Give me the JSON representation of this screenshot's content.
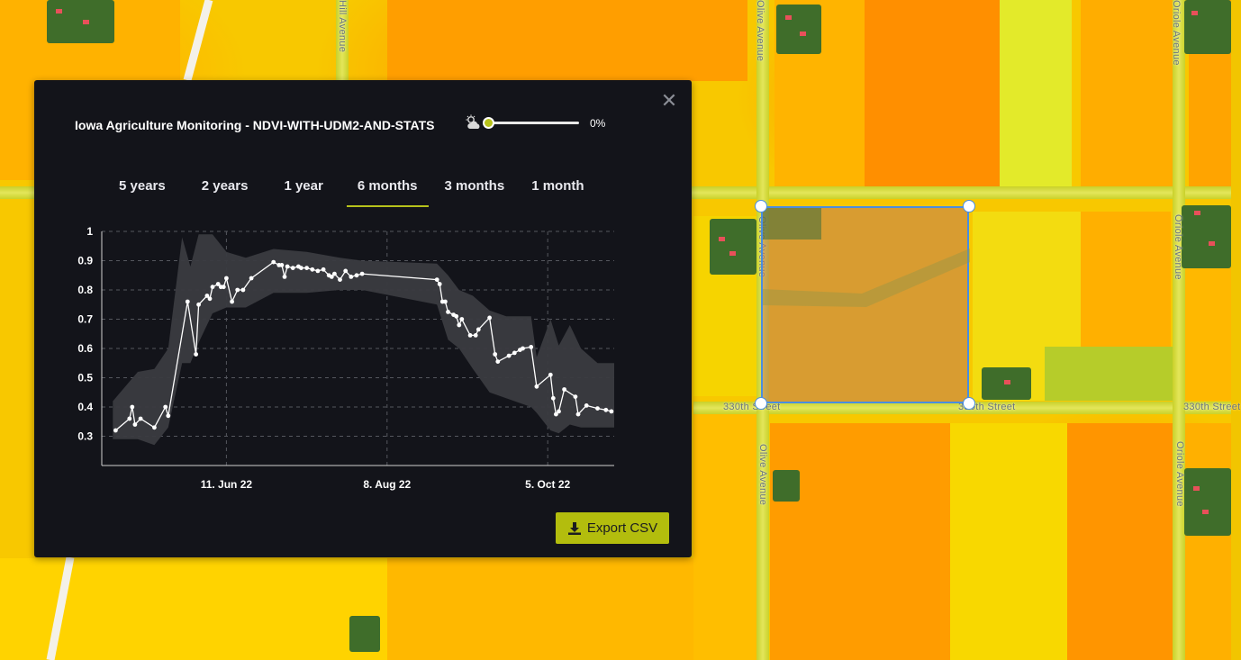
{
  "map": {
    "street_labels": {
      "hill_avenue": "Hill Avenue",
      "olive_avenue_top": "Olive Avenue",
      "oriole_avenue_top": "Oriole Avenue",
      "olive_avenue_mid": "Olive Avenue",
      "oriole_avenue_mid": "Oriole Avenue",
      "street_330_left": "330th Street",
      "street_330_mid": "330th Street",
      "street_330_right": "330th Street",
      "olive_avenue_bottom": "Olive Avenue",
      "oriole_avenue_bottom": "Oriole Avenue"
    },
    "aoi_color": "#4a8ee0"
  },
  "panel": {
    "title": "Iowa Agriculture Monitoring - NDVI-WITH-UDM2-AND-STATS",
    "close_icon": "close-icon",
    "cloud_filter": {
      "icon": "cloud-sun-icon",
      "value_label": "0%",
      "value": 0
    },
    "tabs": [
      {
        "label": "5 years",
        "active": false
      },
      {
        "label": "2 years",
        "active": false
      },
      {
        "label": "1 year",
        "active": false
      },
      {
        "label": "6 months",
        "active": true
      },
      {
        "label": "3 months",
        "active": false
      },
      {
        "label": "1 month",
        "active": false
      }
    ],
    "accent_color": "#b6c11b",
    "export_label": "Export CSV",
    "export_icon": "download-icon"
  },
  "chart_data": {
    "type": "line",
    "title": "",
    "xlabel": "",
    "ylabel": "",
    "ylim": [
      0.2,
      1.0
    ],
    "y_ticks": [
      "1",
      "0.9",
      "0.8",
      "0.7",
      "0.6",
      "0.5",
      "0.4",
      "0.3"
    ],
    "x_ticks": [
      "11. Jun 22",
      "8. Aug 22",
      "5. Oct 22"
    ],
    "x_range": [
      "2022-04-27",
      "2022-10-29"
    ],
    "grid": true,
    "series": [
      {
        "points": [
          [
            "2022-05-02",
            0.32
          ],
          [
            "2022-05-07",
            0.36
          ],
          [
            "2022-05-08",
            0.4
          ],
          [
            "2022-05-09",
            0.34
          ],
          [
            "2022-05-11",
            0.36
          ],
          [
            "2022-05-16",
            0.33
          ],
          [
            "2022-05-20",
            0.4
          ],
          [
            "2022-05-21",
            0.37
          ],
          [
            "2022-05-28",
            0.76
          ],
          [
            "2022-05-31",
            0.58
          ],
          [
            "2022-06-01",
            0.75
          ],
          [
            "2022-06-04",
            0.78
          ],
          [
            "2022-06-05",
            0.77
          ],
          [
            "2022-06-06",
            0.81
          ],
          [
            "2022-06-08",
            0.82
          ],
          [
            "2022-06-09",
            0.81
          ],
          [
            "2022-06-10",
            0.81
          ],
          [
            "2022-06-11",
            0.84
          ],
          [
            "2022-06-13",
            0.76
          ],
          [
            "2022-06-15",
            0.8
          ],
          [
            "2022-06-17",
            0.8
          ],
          [
            "2022-06-20",
            0.84
          ],
          [
            "2022-06-28",
            0.895
          ],
          [
            "2022-06-30",
            0.885
          ],
          [
            "2022-07-01",
            0.885
          ],
          [
            "2022-07-02",
            0.845
          ],
          [
            "2022-07-03",
            0.88
          ],
          [
            "2022-07-05",
            0.875
          ],
          [
            "2022-07-07",
            0.88
          ],
          [
            "2022-07-08",
            0.875
          ],
          [
            "2022-07-10",
            0.875
          ],
          [
            "2022-07-12",
            0.87
          ],
          [
            "2022-07-14",
            0.865
          ],
          [
            "2022-07-16",
            0.87
          ],
          [
            "2022-07-18",
            0.85
          ],
          [
            "2022-07-19",
            0.845
          ],
          [
            "2022-07-20",
            0.855
          ],
          [
            "2022-07-22",
            0.835
          ],
          [
            "2022-07-24",
            0.865
          ],
          [
            "2022-07-26",
            0.845
          ],
          [
            "2022-07-28",
            0.85
          ],
          [
            "2022-07-30",
            0.855
          ],
          [
            "2022-08-26",
            0.835
          ],
          [
            "2022-08-27",
            0.82
          ],
          [
            "2022-08-28",
            0.76
          ],
          [
            "2022-08-29",
            0.76
          ],
          [
            "2022-08-30",
            0.725
          ],
          [
            "2022-09-01",
            0.715
          ],
          [
            "2022-09-02",
            0.71
          ],
          [
            "2022-09-03",
            0.68
          ],
          [
            "2022-09-04",
            0.7
          ],
          [
            "2022-09-07",
            0.645
          ],
          [
            "2022-09-09",
            0.645
          ],
          [
            "2022-09-10",
            0.665
          ],
          [
            "2022-09-14",
            0.705
          ],
          [
            "2022-09-16",
            0.58
          ],
          [
            "2022-09-17",
            0.555
          ],
          [
            "2022-09-21",
            0.575
          ],
          [
            "2022-09-23",
            0.585
          ],
          [
            "2022-09-25",
            0.595
          ],
          [
            "2022-09-26",
            0.6
          ],
          [
            "2022-09-29",
            0.605
          ],
          [
            "2022-10-01",
            0.47
          ],
          [
            "2022-10-06",
            0.51
          ],
          [
            "2022-10-07",
            0.43
          ],
          [
            "2022-10-08",
            0.375
          ],
          [
            "2022-10-09",
            0.385
          ],
          [
            "2022-10-11",
            0.46
          ],
          [
            "2022-10-15",
            0.435
          ],
          [
            "2022-10-16",
            0.375
          ],
          [
            "2022-10-19",
            0.405
          ],
          [
            "2022-10-23",
            0.395
          ],
          [
            "2022-10-26",
            0.39
          ],
          [
            "2022-10-28",
            0.385
          ]
        ],
        "band": [
          [
            "2022-05-01",
            0.29,
            0.42
          ],
          [
            "2022-05-10",
            0.29,
            0.52
          ],
          [
            "2022-05-16",
            0.27,
            0.53
          ],
          [
            "2022-05-21",
            0.33,
            0.6
          ],
          [
            "2022-05-26",
            0.55,
            0.98
          ],
          [
            "2022-05-29",
            0.55,
            0.88
          ],
          [
            "2022-06-01",
            0.62,
            0.99
          ],
          [
            "2022-06-06",
            0.72,
            0.99
          ],
          [
            "2022-06-11",
            0.74,
            0.93
          ],
          [
            "2022-06-18",
            0.74,
            0.91
          ],
          [
            "2022-06-28",
            0.79,
            0.94
          ],
          [
            "2022-07-10",
            0.79,
            0.93
          ],
          [
            "2022-07-22",
            0.8,
            0.91
          ],
          [
            "2022-07-30",
            0.8,
            0.9
          ],
          [
            "2022-08-26",
            0.75,
            0.89
          ],
          [
            "2022-08-30",
            0.63,
            0.85
          ],
          [
            "2022-09-03",
            0.6,
            0.8
          ],
          [
            "2022-09-08",
            0.53,
            0.78
          ],
          [
            "2022-09-14",
            0.45,
            0.73
          ],
          [
            "2022-09-20",
            0.43,
            0.71
          ],
          [
            "2022-09-29",
            0.4,
            0.71
          ],
          [
            "2022-10-01",
            0.38,
            0.57
          ],
          [
            "2022-10-06",
            0.32,
            0.7
          ],
          [
            "2022-10-09",
            0.31,
            0.61
          ],
          [
            "2022-10-13",
            0.34,
            0.68
          ],
          [
            "2022-10-17",
            0.33,
            0.6
          ],
          [
            "2022-10-23",
            0.33,
            0.55
          ],
          [
            "2022-10-29",
            0.33,
            0.55
          ]
        ],
        "line_color": "#ffffff",
        "band_color": "#3a3b40"
      }
    ]
  }
}
